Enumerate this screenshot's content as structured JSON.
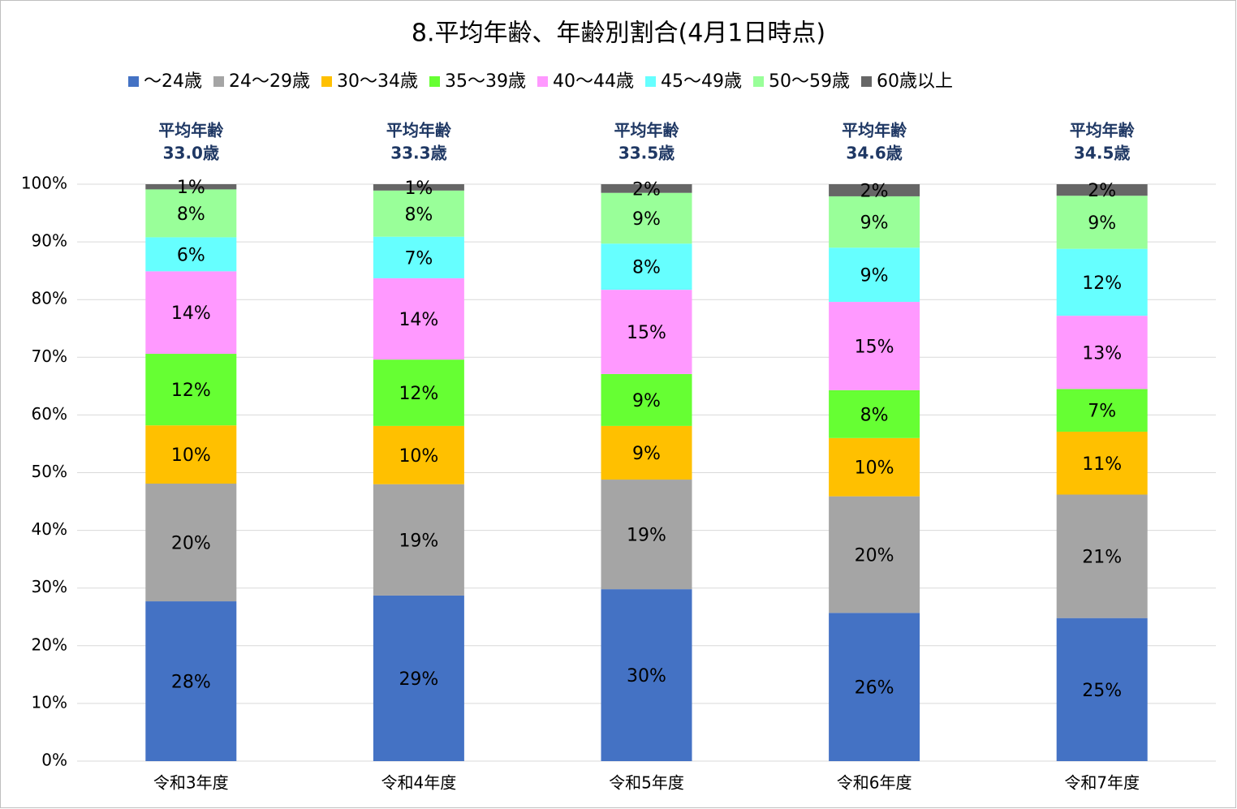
{
  "chart_data": {
    "type": "stacked_bar",
    "title": "8.平均年齢、年齢別割合(4月1日時点)",
    "categories": [
      "令和3年度",
      "令和4年度",
      "令和5年度",
      "令和6年度",
      "令和7年度"
    ],
    "annotations": [
      [
        "平均年齢",
        "33.0歳"
      ],
      [
        "平均年齢",
        "33.3歳"
      ],
      [
        "平均年齢",
        "33.5歳"
      ],
      [
        "平均年齢",
        "34.6歳"
      ],
      [
        "平均年齢",
        "34.5歳"
      ]
    ],
    "series": [
      {
        "name": "～24歳",
        "color": "#4472c4",
        "values": [
          27.7,
          28.7,
          29.8,
          25.7,
          24.8
        ],
        "value_labels": [
          "28%",
          "29%",
          "30%",
          "26%",
          "25%"
        ]
      },
      {
        "name": "24～29歳",
        "color": "#a5a5a5",
        "values": [
          20.4,
          19.3,
          19.0,
          20.2,
          21.4
        ],
        "value_labels": [
          "20%",
          "19%",
          "19%",
          "20%",
          "21%"
        ]
      },
      {
        "name": "30～34歳",
        "color": "#ffc000",
        "values": [
          10.1,
          10.1,
          9.3,
          10.1,
          10.9
        ],
        "value_labels": [
          "10%",
          "10%",
          "9%",
          "10%",
          "11%"
        ]
      },
      {
        "name": "35～39歳",
        "color": "#66ff33",
        "values": [
          12.4,
          11.5,
          9.0,
          8.3,
          7.4
        ],
        "value_labels": [
          "12%",
          "12%",
          "9%",
          "8%",
          "7%"
        ]
      },
      {
        "name": "40～44歳",
        "color": "#ff99ff",
        "values": [
          14.3,
          14.1,
          14.6,
          15.3,
          12.7
        ],
        "value_labels": [
          "14%",
          "14%",
          "15%",
          "15%",
          "13%"
        ]
      },
      {
        "name": "45～49歳",
        "color": "#66ffff",
        "values": [
          5.9,
          7.2,
          8.0,
          9.4,
          11.6
        ],
        "value_labels": [
          "6%",
          "7%",
          "8%",
          "9%",
          "12%"
        ]
      },
      {
        "name": "50～59歳",
        "color": "#99ff99",
        "values": [
          8.3,
          8.0,
          8.8,
          8.9,
          9.2
        ],
        "value_labels": [
          "8%",
          "8%",
          "9%",
          "9%",
          "9%"
        ]
      },
      {
        "name": "60歳以上",
        "color": "#666666",
        "values": [
          0.9,
          1.1,
          1.5,
          2.1,
          2.0
        ],
        "value_labels": [
          "1%",
          "1%",
          "2%",
          "2%",
          "2%"
        ]
      }
    ],
    "ylim": [
      0,
      100
    ],
    "yticks": [
      {
        "value": 0,
        "label": "0%"
      },
      {
        "value": 10,
        "label": "10%"
      },
      {
        "value": 20,
        "label": "20%"
      },
      {
        "value": 30,
        "label": "30%"
      },
      {
        "value": 40,
        "label": "40%"
      },
      {
        "value": 50,
        "label": "50%"
      },
      {
        "value": 60,
        "label": "60%"
      },
      {
        "value": 70,
        "label": "70%"
      },
      {
        "value": 80,
        "label": "80%"
      },
      {
        "value": 90,
        "label": "90%"
      },
      {
        "value": 100,
        "label": "100%"
      }
    ],
    "grid": true,
    "legend": "top"
  }
}
